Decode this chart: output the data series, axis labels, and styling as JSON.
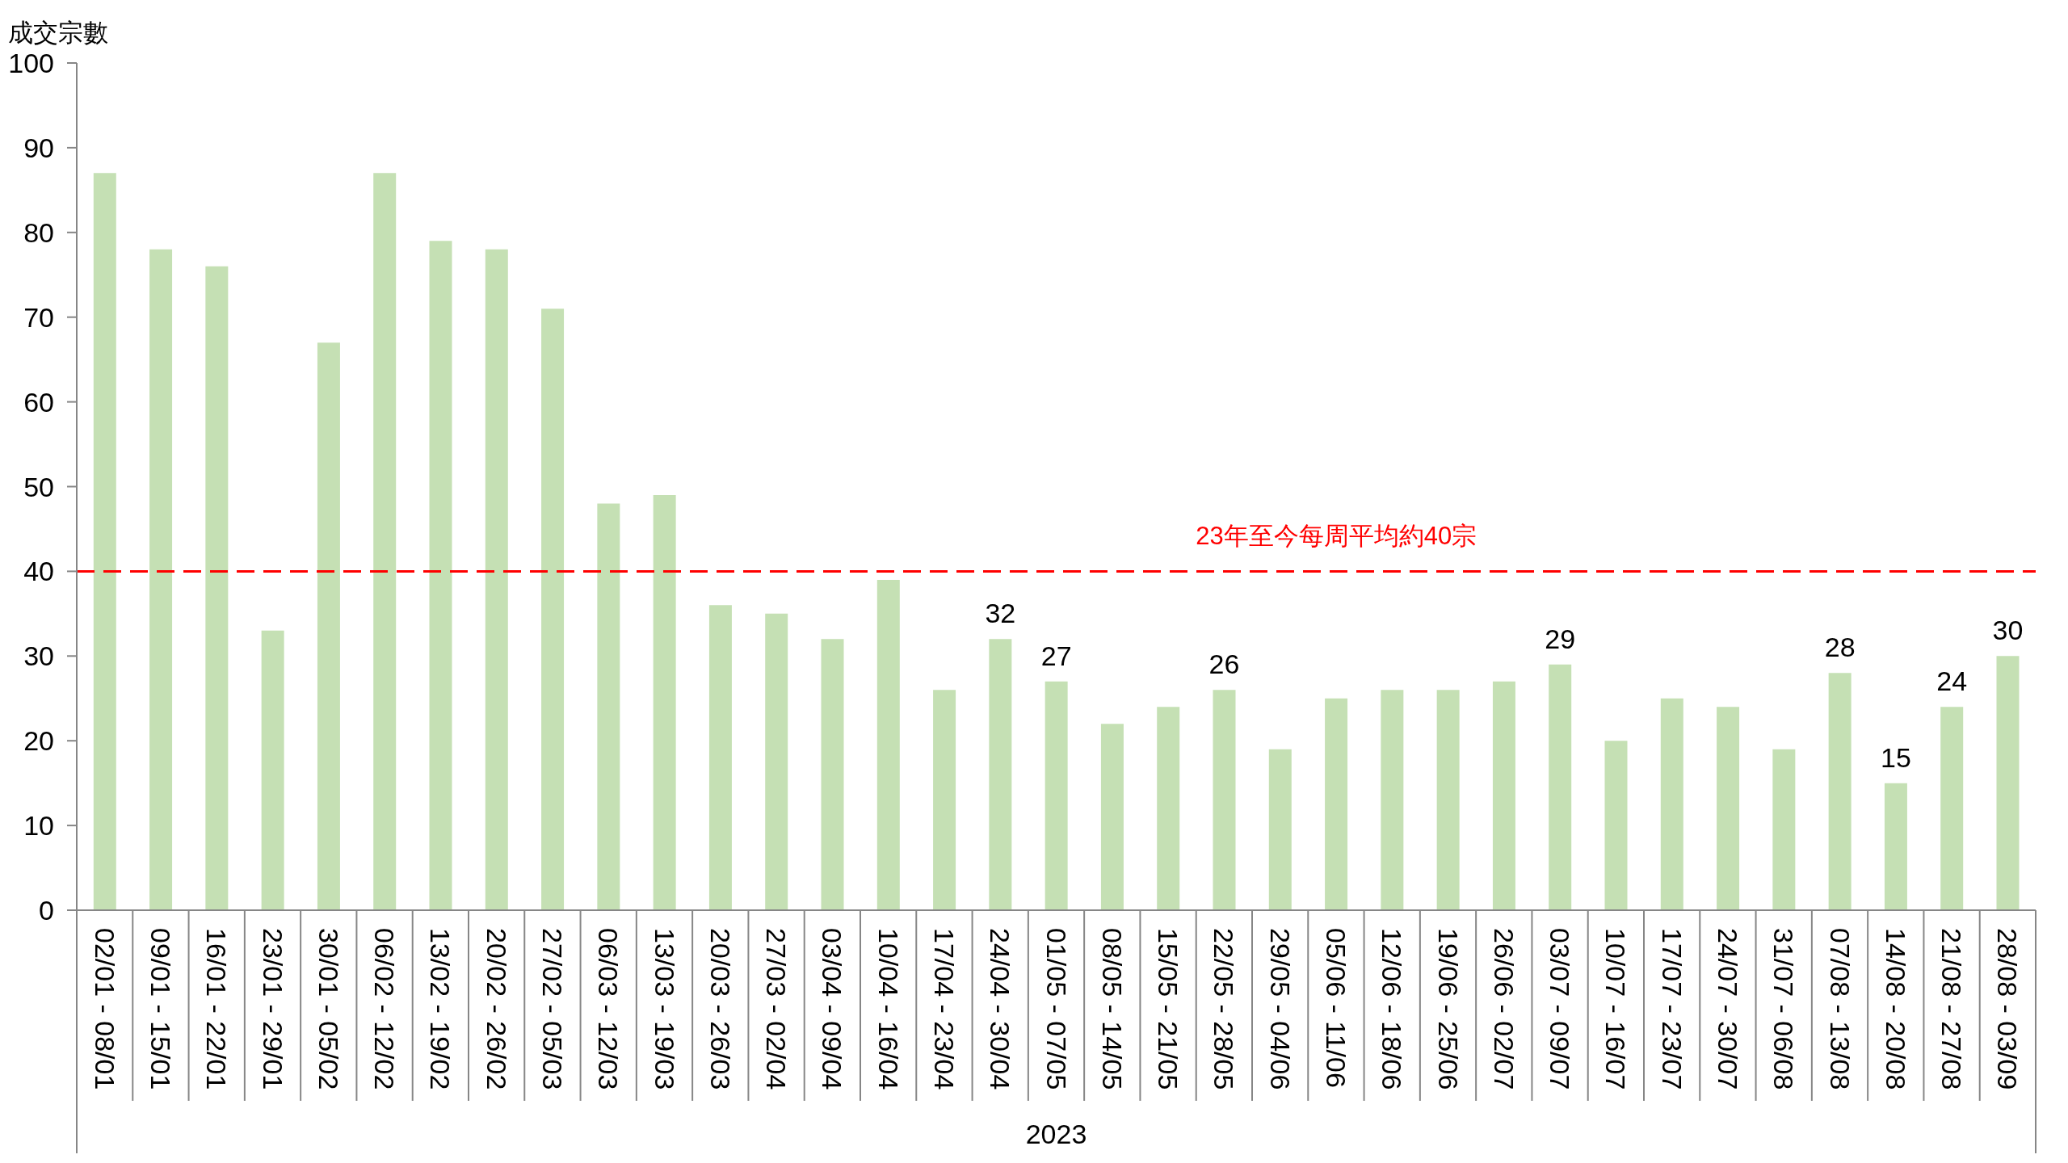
{
  "chart_data": {
    "type": "bar",
    "ylabel": "成交宗數",
    "xlabel": "2023",
    "categories": [
      "02/01 - 08/01",
      "09/01 - 15/01",
      "16/01 - 22/01",
      "23/01 - 29/01",
      "30/01 - 05/02",
      "06/02 - 12/02",
      "13/02 - 19/02",
      "20/02 - 26/02",
      "27/02 - 05/03",
      "06/03 - 12/03",
      "13/03 - 19/03",
      "20/03 - 26/03",
      "27/03 - 02/04",
      "03/04 - 09/04",
      "10/04 - 16/04",
      "17/04 - 23/04",
      "24/04 - 30/04",
      "01/05 - 07/05",
      "08/05 - 14/05",
      "15/05 - 21/05",
      "22/05 - 28/05",
      "29/05 - 04/06",
      "05/06 - 11/06",
      "12/06 - 18/06",
      "19/06 - 25/06",
      "26/06 - 02/07",
      "03/07 - 09/07",
      "10/07 - 16/07",
      "17/07 - 23/07",
      "24/07 - 30/07",
      "31/07 - 06/08",
      "07/08 - 13/08",
      "14/08 - 20/08",
      "21/08 - 27/08",
      "28/08 - 03/09"
    ],
    "values": [
      87,
      78,
      76,
      33,
      67,
      87,
      79,
      78,
      71,
      48,
      49,
      36,
      35,
      32,
      39,
      26,
      32,
      27,
      22,
      24,
      26,
      19,
      25,
      26,
      26,
      27,
      29,
      20,
      25,
      24,
      19,
      28,
      15,
      24,
      30
    ],
    "value_labels": [
      null,
      null,
      null,
      null,
      null,
      null,
      null,
      null,
      null,
      null,
      null,
      null,
      null,
      null,
      null,
      null,
      "32",
      "27",
      null,
      null,
      "26",
      null,
      null,
      null,
      null,
      null,
      "29",
      null,
      null,
      null,
      null,
      "28",
      "15",
      "24",
      "30"
    ],
    "color": "#c5e0b4",
    "ylim": [
      0,
      100
    ],
    "yticks": [
      0,
      10,
      20,
      30,
      40,
      50,
      60,
      70,
      80,
      90,
      100
    ],
    "ref_lines": [
      {
        "axis": "y",
        "value": 40,
        "label": "23年至今每周平均約40宗",
        "color": "#ff0000",
        "line_style": "dashed"
      }
    ]
  }
}
